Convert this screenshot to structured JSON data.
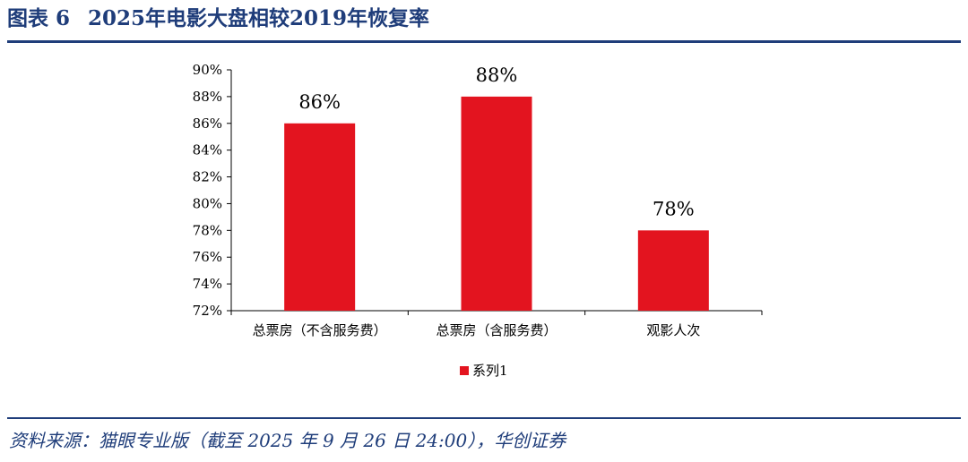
{
  "header": {
    "figure_label": "图表",
    "figure_number": "6",
    "title": "2025年电影大盘相较2019年恢复率"
  },
  "footer": {
    "source": "资料来源：猫眼专业版（截至 2025 年 9 月 26 日 24:00），华创证券"
  },
  "colors": {
    "bar": "#e3141f",
    "title": "#1f3d7a",
    "axis": "#000000"
  },
  "chart_data": {
    "type": "bar",
    "categories": [
      "总票房（不含服务费）",
      "总票房（含服务费）",
      "观影人次"
    ],
    "series": [
      {
        "name": "系列1",
        "values": [
          86,
          88,
          78
        ]
      }
    ],
    "data_labels": [
      "86%",
      "88%",
      "78%"
    ],
    "yticks": [
      "72%",
      "74%",
      "76%",
      "78%",
      "80%",
      "82%",
      "84%",
      "86%",
      "88%",
      "90%"
    ],
    "ylim": [
      72,
      90
    ],
    "grid": false,
    "legend": "bottom"
  }
}
